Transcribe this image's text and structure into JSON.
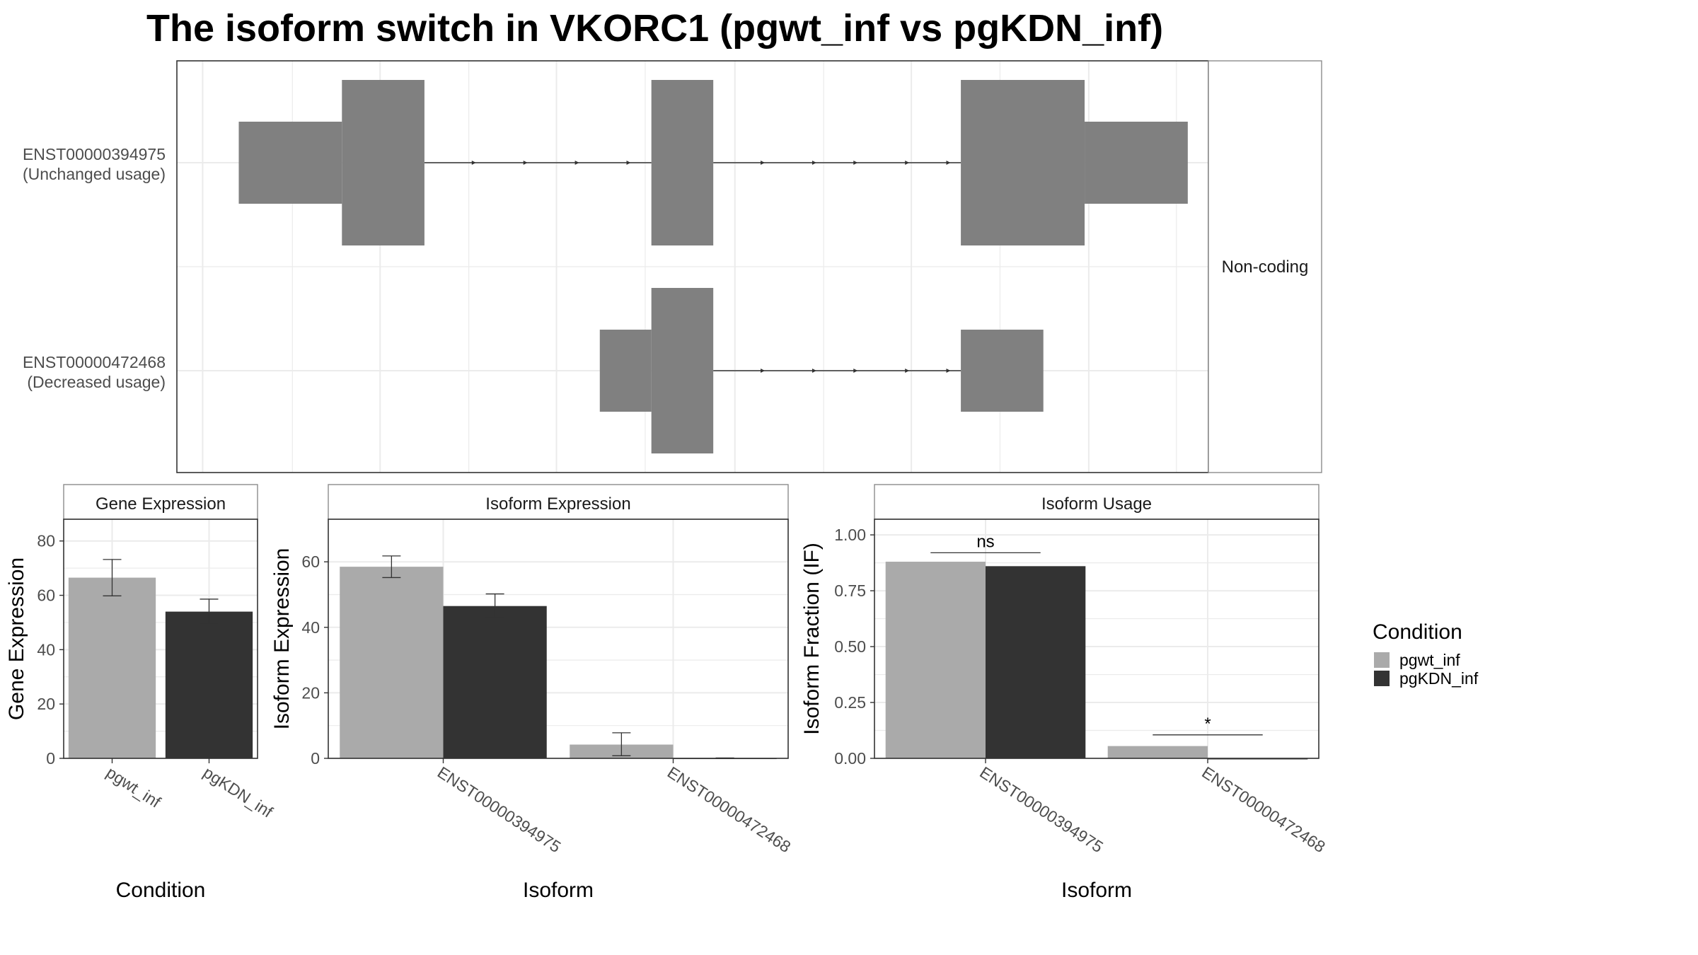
{
  "title": "The isoform switch in VKORC1 (pgwt_inf vs pgKDN_inf)",
  "colors": {
    "exon": "#808080",
    "pgwt_inf": "#aaaaaa",
    "pgKDN_inf": "#333333",
    "grid": "#ebebeb",
    "panel_border": "#333333",
    "strip_border": "#8c8c8c"
  },
  "chart_data": [
    {
      "type": "other",
      "panel": "transcript_structure",
      "facet_label": "Non-coding",
      "transcripts": [
        {
          "id": "ENST00000394975",
          "label_line1": "ENST00000394975",
          "label_line2": "(Unchanged usage)",
          "exons": [
            {
              "start": 0.06,
              "end": 0.16,
              "kind": "utr"
            },
            {
              "start": 0.16,
              "end": 0.24,
              "kind": "cds"
            },
            {
              "start": 0.46,
              "end": 0.52,
              "kind": "cds"
            },
            {
              "start": 0.76,
              "end": 0.88,
              "kind": "cds"
            },
            {
              "start": 0.88,
              "end": 0.98,
              "kind": "utr"
            }
          ],
          "introns": [
            {
              "start": 0.24,
              "end": 0.46,
              "arrows": [
                0.29,
                0.34,
                0.39,
                0.44,
                0.49,
                0.54
              ]
            },
            {
              "start": 0.52,
              "end": 0.76,
              "arrows": [
                0.57,
                0.62,
                0.66,
                0.71,
                0.75,
                0.79
              ]
            }
          ]
        },
        {
          "id": "ENST00000472468",
          "label_line1": "ENST00000472468",
          "label_line2": "(Decreased usage)",
          "exons": [
            {
              "start": 0.41,
              "end": 0.46,
              "kind": "utr"
            },
            {
              "start": 0.46,
              "end": 0.52,
              "kind": "cds"
            },
            {
              "start": 0.76,
              "end": 0.84,
              "kind": "utr"
            }
          ],
          "introns": [
            {
              "start": 0.52,
              "end": 0.76,
              "arrows": [
                0.57,
                0.62,
                0.66,
                0.71,
                0.75,
                0.79
              ]
            }
          ]
        }
      ]
    },
    {
      "type": "bar",
      "panel": "gene_expression",
      "strip_label": "Gene Expression",
      "xlabel": "Condition",
      "ylabel": "Gene Expression",
      "ylim": [
        0,
        88
      ],
      "yticks": [
        0,
        20,
        40,
        60,
        80
      ],
      "categories": [
        "pgwt_inf",
        "pgKDN_inf"
      ],
      "series": [
        {
          "name": "pgwt_inf",
          "values": [
            66.5,
            null
          ],
          "err_low": [
            59.8,
            null
          ],
          "err_high": [
            73.2,
            null
          ]
        },
        {
          "name": "pgKDN_inf",
          "values": [
            null,
            54
          ],
          "err_low": [
            null,
            49.5
          ],
          "err_high": [
            null,
            58.6
          ]
        }
      ],
      "annotations": []
    },
    {
      "type": "bar",
      "panel": "isoform_expression",
      "strip_label": "Isoform Expression",
      "xlabel": "Isoform",
      "ylabel": "Isoform Expression",
      "ylim": [
        0,
        73
      ],
      "yticks": [
        0,
        20,
        40,
        60
      ],
      "categories": [
        "ENST00000394975",
        "ENST00000472468"
      ],
      "series": [
        {
          "name": "pgwt_inf",
          "values": [
            58.5,
            4.2
          ],
          "err_low": [
            55.2,
            0.8
          ],
          "err_high": [
            61.8,
            7.8
          ]
        },
        {
          "name": "pgKDN_inf",
          "values": [
            46.5,
            0.1
          ],
          "err_low": [
            43,
            0.1
          ],
          "err_high": [
            50.2,
            0.1
          ]
        }
      ],
      "annotations": []
    },
    {
      "type": "bar",
      "panel": "isoform_usage",
      "strip_label": "Isoform Usage",
      "xlabel": "Isoform",
      "ylabel": "Isoform Fraction (IF)",
      "ylim": [
        0,
        1.07
      ],
      "yticks": [
        0,
        0.25,
        0.5,
        0.75,
        1.0
      ],
      "ytick_labels": [
        "0.00",
        "0.25",
        "0.50",
        "0.75",
        "1.00"
      ],
      "categories": [
        "ENST00000394975",
        "ENST00000472468"
      ],
      "series": [
        {
          "name": "pgwt_inf",
          "values": [
            0.88,
            0.055
          ]
        },
        {
          "name": "pgKDN_inf",
          "values": [
            0.86,
            0
          ]
        }
      ],
      "annotations": [
        {
          "category": "ENST00000394975",
          "y": 0.92,
          "text": "ns"
        },
        {
          "category": "ENST00000472468",
          "y": 0.105,
          "text": "*"
        }
      ]
    }
  ],
  "legend": {
    "title": "Condition",
    "placement": "right",
    "entries": [
      "pgwt_inf",
      "pgKDN_inf"
    ]
  }
}
